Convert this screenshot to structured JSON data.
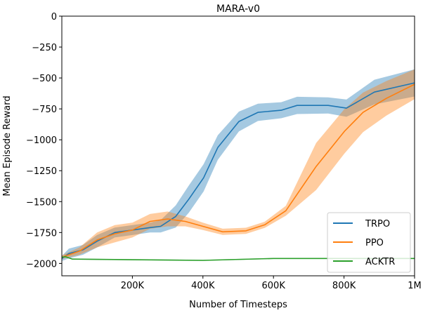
{
  "chart_data": {
    "type": "line",
    "title": "MARA-v0",
    "xlabel": "Number of Timesteps",
    "ylabel": "Mean Episode Reward",
    "xlim": [
      0,
      1000000
    ],
    "ylim": [
      -2100,
      0
    ],
    "xticks": [
      {
        "value": 200000,
        "label": "200K"
      },
      {
        "value": 400000,
        "label": "400K"
      },
      {
        "value": 600000,
        "label": "600K"
      },
      {
        "value": 800000,
        "label": "800K"
      },
      {
        "value": 1000000,
        "label": "1M"
      }
    ],
    "yticks": [
      {
        "value": 0,
        "label": "0"
      },
      {
        "value": -250,
        "label": "−250"
      },
      {
        "value": -500,
        "label": "−500"
      },
      {
        "value": -750,
        "label": "−750"
      },
      {
        "value": -1000,
        "label": "−1000"
      },
      {
        "value": -1250,
        "label": "−1250"
      },
      {
        "value": -1500,
        "label": "−1500"
      },
      {
        "value": -1750,
        "label": "−1750"
      },
      {
        "value": -2000,
        "label": "−2000"
      }
    ],
    "grid": false,
    "legend_position": "bottom-right",
    "series": [
      {
        "name": "TRPO",
        "color": "#1f77b4",
        "x": [
          0,
          20000,
          60000,
          100000,
          150000,
          200000,
          250000,
          280000,
          323000,
          360000,
          402000,
          442000,
          502000,
          556000,
          622000,
          667000,
          755000,
          807000,
          886000,
          1000000
        ],
        "y": [
          -1960,
          -1920,
          -1890,
          -1820,
          -1750,
          -1730,
          -1710,
          -1700,
          -1620,
          -1480,
          -1307,
          -1063,
          -852,
          -778,
          -761,
          -722,
          -722,
          -744,
          -614,
          -540
        ],
        "band": [
          20,
          40,
          40,
          50,
          40,
          40,
          40,
          50,
          90,
          110,
          110,
          100,
          80,
          70,
          65,
          70,
          65,
          70,
          100,
          110
        ]
      },
      {
        "name": "PPO",
        "color": "#ff7f0e",
        "x": [
          0,
          50000,
          100000,
          150000,
          200000,
          250000,
          300000,
          350000,
          400000,
          456000,
          522000,
          575000,
          635000,
          721000,
          801000,
          854000,
          920000,
          1000000
        ],
        "y": [
          -1950,
          -1900,
          -1810,
          -1760,
          -1730,
          -1660,
          -1640,
          -1660,
          -1700,
          -1744,
          -1736,
          -1688,
          -1574,
          -1216,
          -932,
          -778,
          -665,
          -551
        ],
        "band": [
          15,
          30,
          60,
          70,
          60,
          60,
          60,
          40,
          30,
          25,
          25,
          25,
          40,
          190,
          180,
          160,
          140,
          120
        ]
      },
      {
        "name": "ACKTR",
        "color": "#2ca02c",
        "x": [
          0,
          10000,
          30000,
          200000,
          400000,
          600000,
          800000,
          1000000
        ],
        "y": [
          -1950,
          -1945,
          -1965,
          -1970,
          -1975,
          -1960,
          -1960,
          -1960
        ],
        "band": [
          5,
          5,
          4,
          4,
          4,
          4,
          4,
          4
        ]
      }
    ]
  }
}
